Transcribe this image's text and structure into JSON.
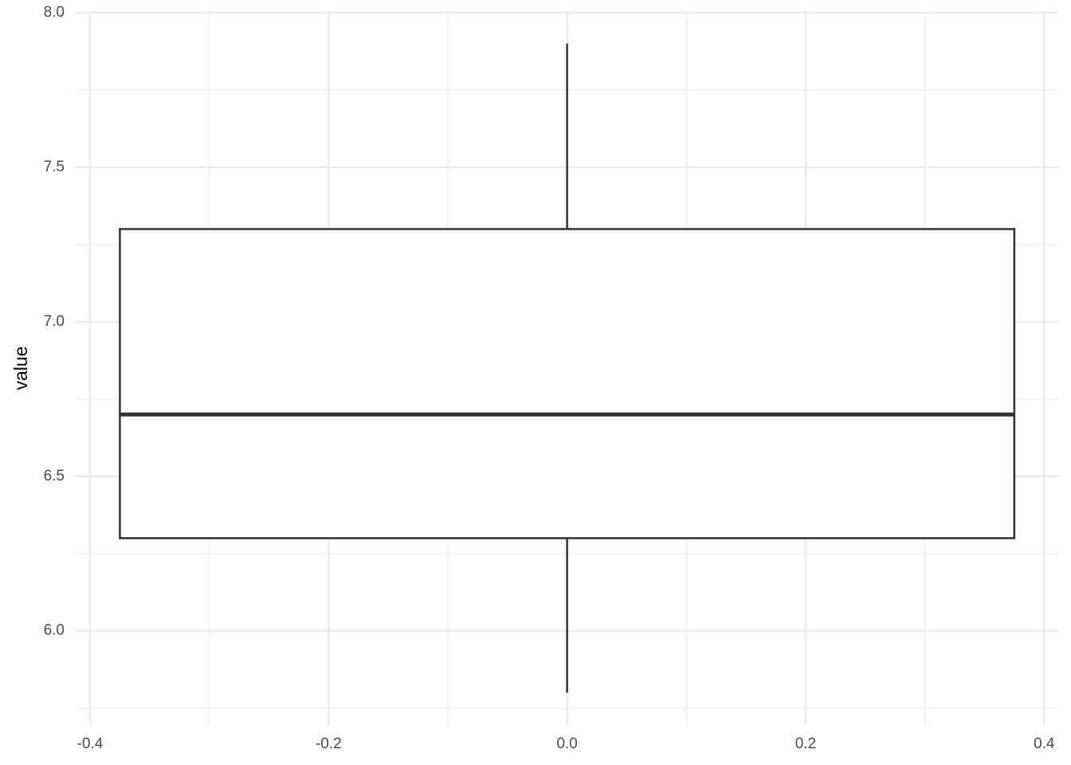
{
  "chart_data": {
    "type": "box",
    "y_label": "value",
    "x": 0,
    "box_width": 0.75,
    "whislo": 5.8,
    "q1": 6.3,
    "med": 6.7,
    "q3": 7.3,
    "whishi": 7.9,
    "xlim": [
      -0.4125,
      0.4125
    ],
    "xticks": [
      {
        "value": -0.4,
        "label": "-0.4"
      },
      {
        "value": -0.2,
        "label": "-0.2"
      },
      {
        "value": 0,
        "label": "0.0"
      },
      {
        "value": 0.2,
        "label": "0.2"
      },
      {
        "value": 0.4,
        "label": "0.4"
      }
    ],
    "xminorticks": [
      -0.3,
      -0.1,
      0.1,
      0.3
    ],
    "ylim": [
      5.695,
      8.005
    ],
    "yticks": [
      {
        "value": 6,
        "label": "6.0"
      },
      {
        "value": 6.5,
        "label": "6.5"
      },
      {
        "value": 7,
        "label": "7.0"
      },
      {
        "value": 7.5,
        "label": "7.5"
      },
      {
        "value": 8,
        "label": "8.0"
      }
    ],
    "yminorticks": [
      5.75,
      6.25,
      6.75,
      7.25,
      7.75
    ],
    "grid": true,
    "color": "#333333",
    "fill": "#ffffff"
  }
}
